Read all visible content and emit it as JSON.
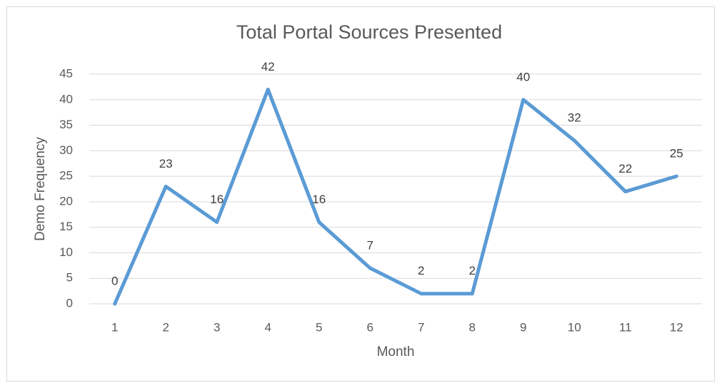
{
  "chart_data": {
    "type": "line",
    "title": "Total Portal Sources Presented",
    "x_label": "Month",
    "y_label": "Demo Frequency",
    "categories": [
      "1",
      "2",
      "3",
      "4",
      "5",
      "6",
      "7",
      "8",
      "9",
      "10",
      "11",
      "12"
    ],
    "series": [
      {
        "name": "Demo Frequency",
        "color": "#5b9bd5",
        "values": [
          0,
          23,
          16,
          42,
          16,
          7,
          2,
          2,
          40,
          32,
          22,
          25
        ]
      }
    ],
    "ylim": [
      0,
      45
    ],
    "yticks": [
      0,
      5,
      10,
      15,
      20,
      25,
      30,
      35,
      40,
      45
    ],
    "grid": true,
    "data_labels": true
  }
}
